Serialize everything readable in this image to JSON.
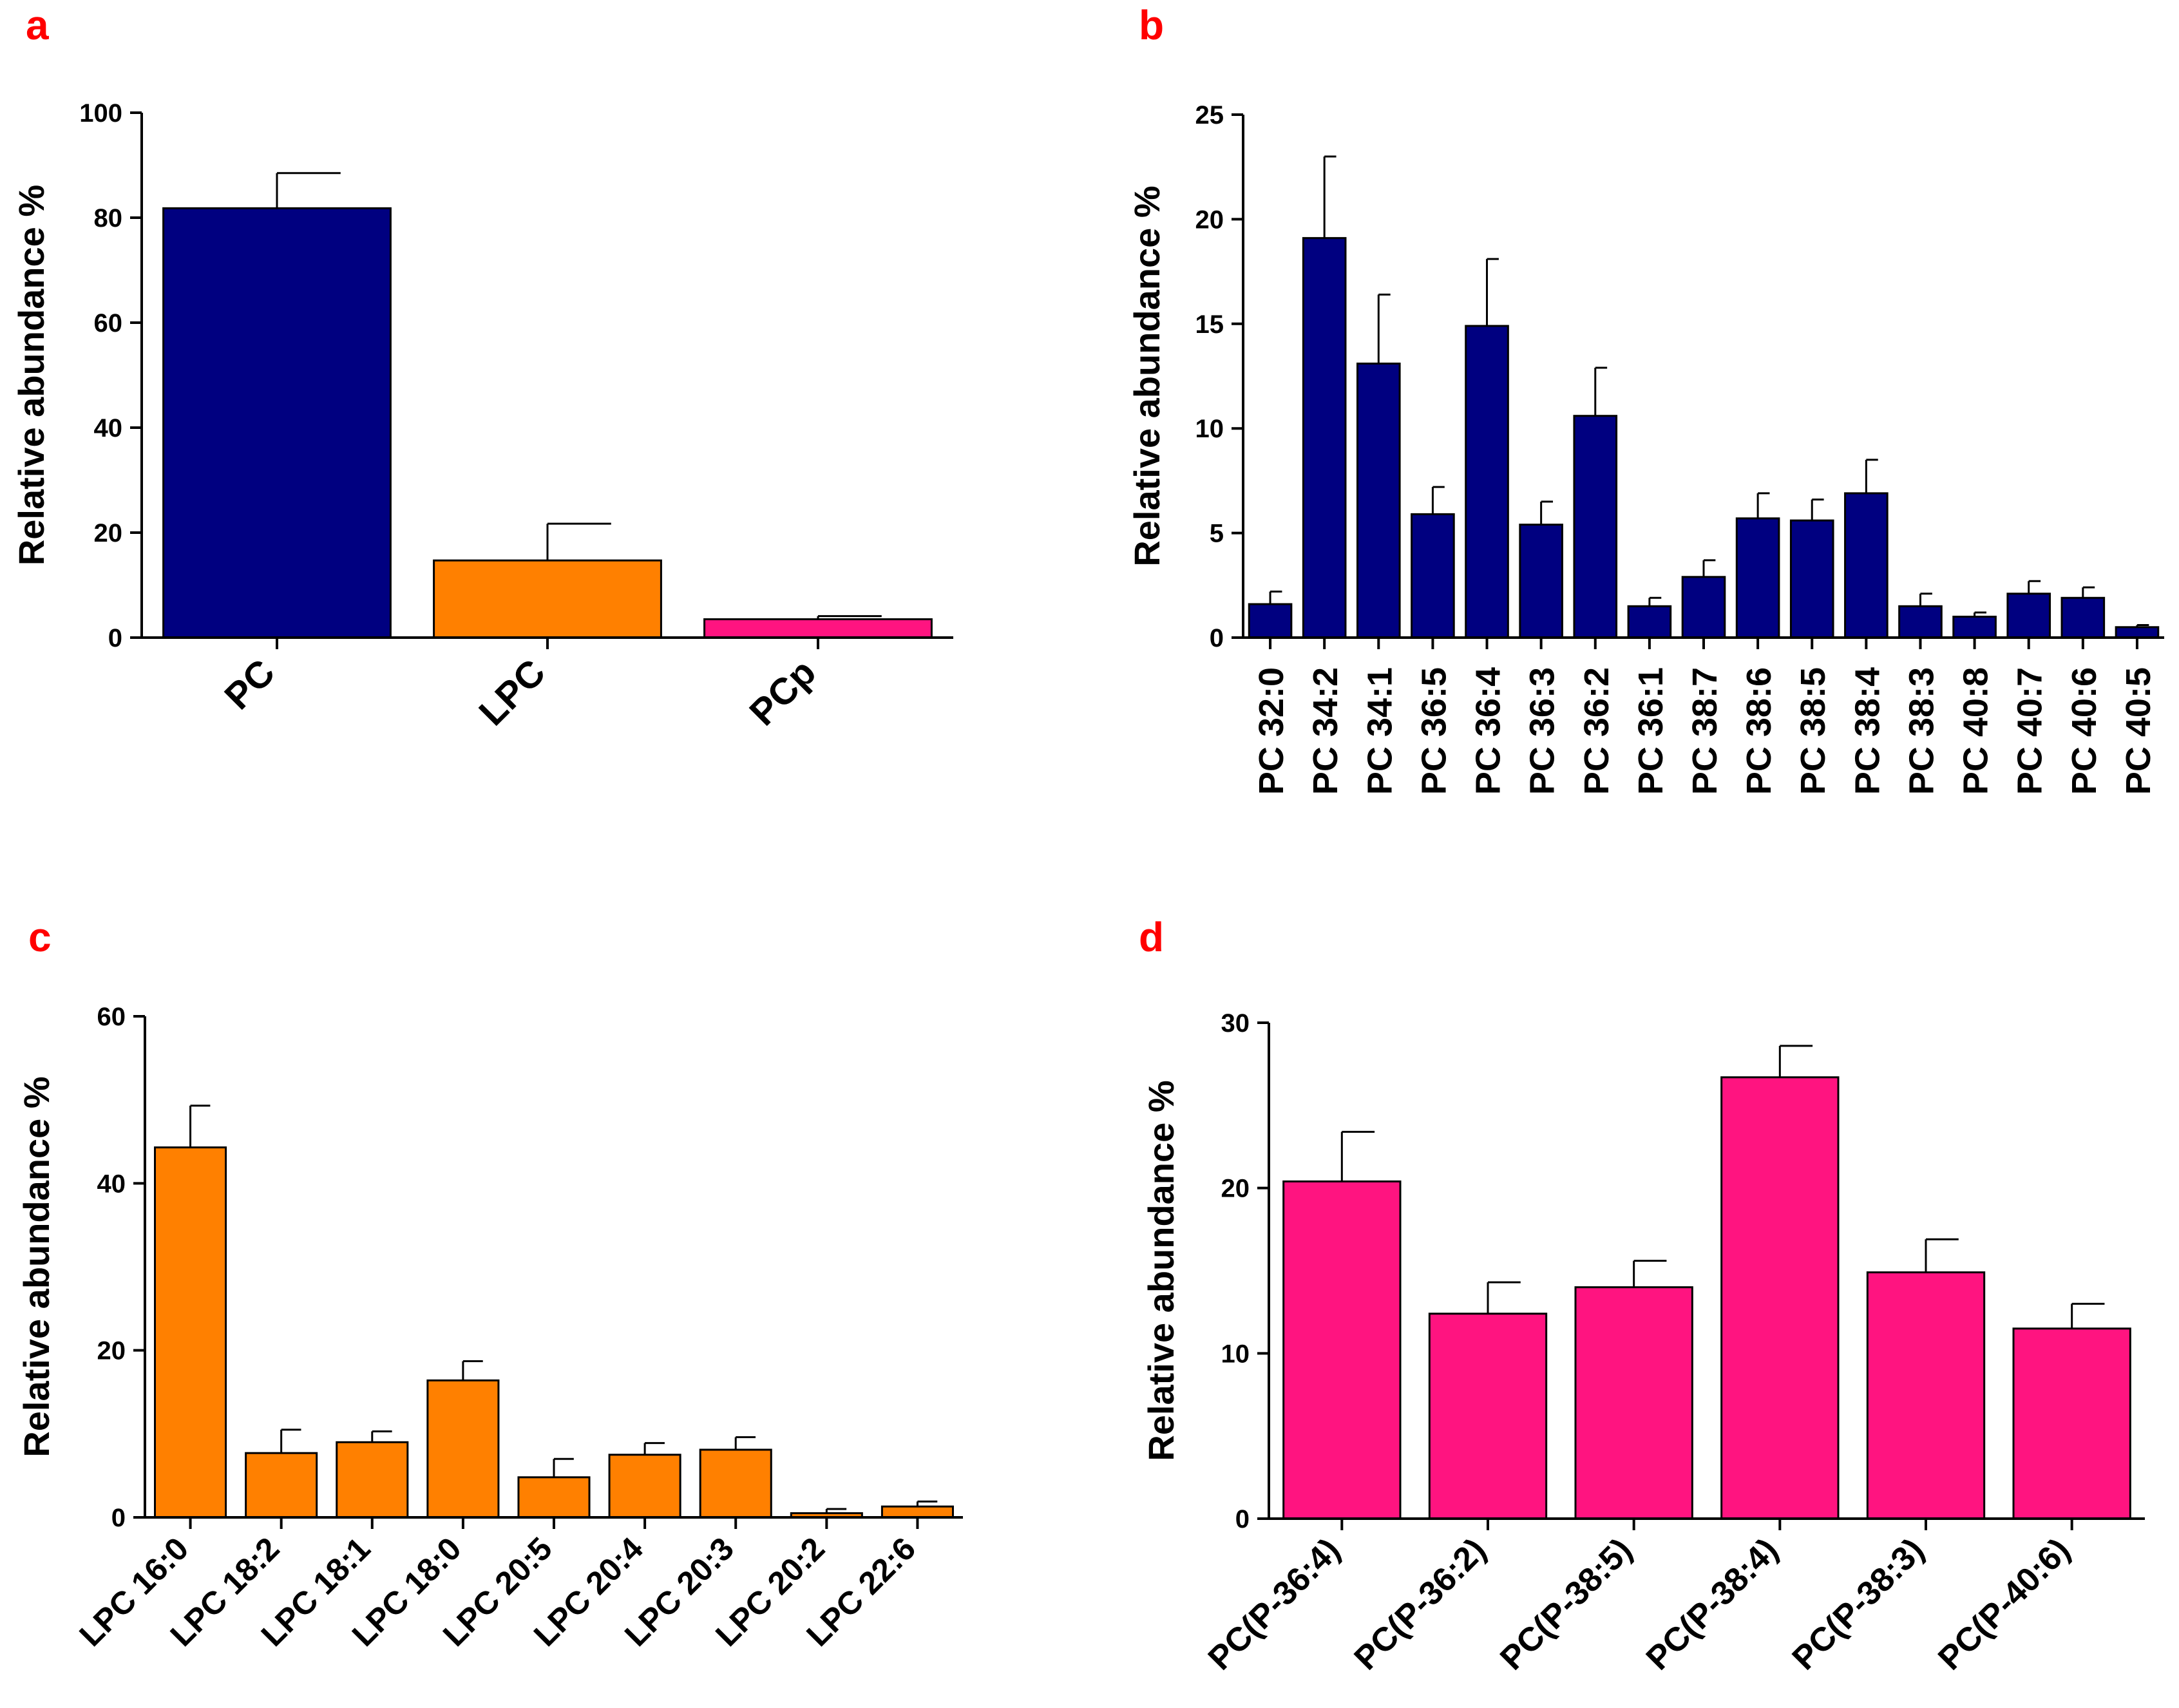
{
  "panels": [
    {
      "label": "a"
    },
    {
      "label": "b"
    },
    {
      "label": "c"
    },
    {
      "label": "d"
    }
  ],
  "colors": {
    "pc_navy": "#000080",
    "lpc_orange": "#ff8000",
    "pcp_pink": "#ff1480",
    "panel_label_red": "#ff0000"
  },
  "chart_data": [
    {
      "panel": "a",
      "type": "bar",
      "title": "",
      "xlabel": "",
      "ylabel": "Relative abundance %",
      "ylim": [
        0,
        100
      ],
      "yticks": [
        0,
        20,
        40,
        60,
        80,
        100
      ],
      "categories": [
        "PC",
        "LPC",
        "PCp"
      ],
      "values": [
        81.8,
        14.7,
        3.5
      ],
      "errors": [
        6.7,
        7.0,
        0.6
      ],
      "colors": [
        "#000080",
        "#ff8000",
        "#ff1480"
      ]
    },
    {
      "panel": "b",
      "type": "bar",
      "title": "",
      "xlabel": "",
      "ylabel": "Relative abundance %",
      "ylim": [
        0,
        25
      ],
      "yticks": [
        0,
        5,
        10,
        15,
        20,
        25
      ],
      "categories": [
        "PC 32:0",
        "PC 34:2",
        "PC 34:1",
        "PC 36:5",
        "PC 36:4",
        "PC 36:3",
        "PC 36:2",
        "PC 36:1",
        "PC 38:7",
        "PC 38:6",
        "PC 38:5",
        "PC 38:4",
        "PC 38:3",
        "PC 40:8",
        "PC 40:7",
        "PC 40:6",
        "PC 40:5"
      ],
      "values": [
        1.6,
        19.1,
        13.1,
        5.9,
        14.9,
        5.4,
        10.6,
        1.5,
        2.9,
        5.7,
        5.6,
        6.9,
        1.5,
        1.0,
        2.1,
        1.9,
        0.5
      ],
      "errors": [
        0.6,
        3.9,
        3.3,
        1.3,
        3.2,
        1.1,
        2.3,
        0.4,
        0.8,
        1.2,
        1.0,
        1.6,
        0.6,
        0.2,
        0.6,
        0.5,
        0.1
      ],
      "colors": [
        "#000080"
      ]
    },
    {
      "panel": "c",
      "type": "bar",
      "title": "",
      "xlabel": "",
      "ylabel": "Relative abundance %",
      "ylim": [
        0,
        60
      ],
      "yticks": [
        0,
        20,
        40,
        60
      ],
      "categories": [
        "LPC 16:0",
        "LPC 18:2",
        "LPC 18:1",
        "LPC 18:0",
        "LPC 20:5",
        "LPC 20:4",
        "LPC 20:3",
        "LPC 20:2",
        "LPC 22:6"
      ],
      "values": [
        44.3,
        7.7,
        9.0,
        16.4,
        4.8,
        7.5,
        8.1,
        0.5,
        1.3
      ],
      "errors": [
        5.0,
        2.8,
        1.3,
        2.3,
        2.2,
        1.4,
        1.5,
        0.5,
        0.6
      ],
      "colors": [
        "#ff8000"
      ]
    },
    {
      "panel": "d",
      "type": "bar",
      "title": "",
      "xlabel": "",
      "ylabel": "Relative abundance %",
      "ylim": [
        0,
        30
      ],
      "yticks": [
        0,
        10,
        20,
        30
      ],
      "categories": [
        "PC(P-36:4)",
        "PC(P-36:2)",
        "PC(P-38:5)",
        "PC(P-38:4)",
        "PC(P-38:3)",
        "PC(P-40:6)"
      ],
      "values": [
        20.4,
        12.4,
        14.0,
        26.7,
        14.9,
        11.5
      ],
      "errors": [
        3.0,
        1.9,
        1.6,
        1.9,
        2.0,
        1.5
      ],
      "colors": [
        "#ff1480"
      ]
    }
  ]
}
